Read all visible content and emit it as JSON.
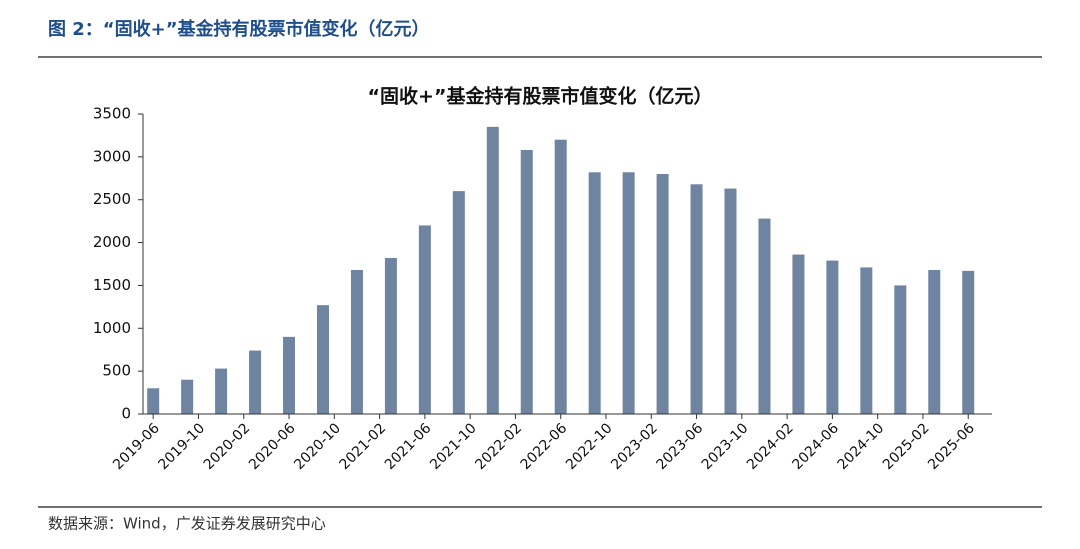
{
  "header": {
    "title": "图 2：“固收+”基金持有股票市值变化（亿元）"
  },
  "chart_data": {
    "type": "bar",
    "title": "“固收+”基金持有股票市值变化（亿元）",
    "values": [
      300,
      400,
      530,
      740,
      900,
      1270,
      1680,
      1820,
      2200,
      2600,
      3350,
      3080,
      3200,
      2820,
      2820,
      2800,
      2680,
      2630,
      2280,
      1860,
      1790,
      1710,
      1500,
      1680,
      1670
    ],
    "xtick_labels": [
      "2019-06",
      "2019-10",
      "2020-02",
      "2020-06",
      "2020-10",
      "2021-02",
      "2021-06",
      "2021-10",
      "2022-02",
      "2022-06",
      "2022-10",
      "2023-02",
      "2023-06",
      "2023-10",
      "2024-02",
      "2024-06",
      "2024-10",
      "2025-02",
      "2025-06"
    ],
    "color": "#6e84a0",
    "ylim": [
      0,
      3500
    ],
    "yticks": [
      0,
      500,
      1000,
      1500,
      2000,
      2500,
      3000,
      3500
    ]
  },
  "source": "数据来源：Wind，广发证券发展研究中心"
}
